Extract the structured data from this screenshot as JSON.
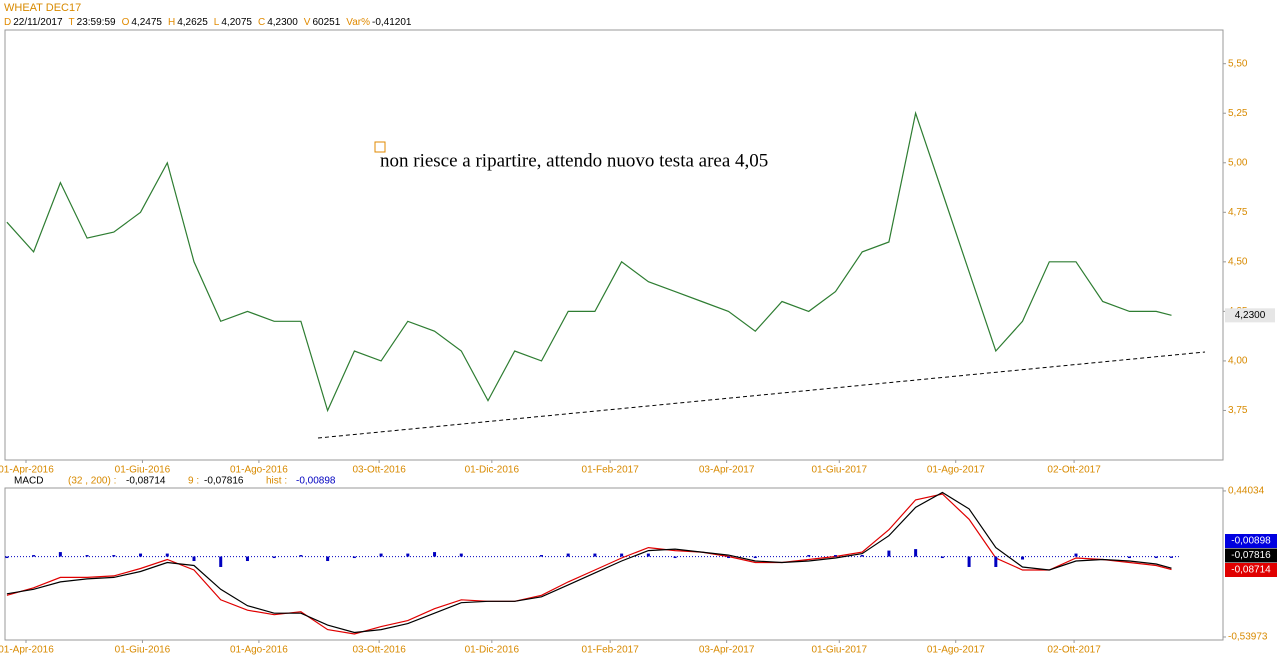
{
  "header": {
    "title": "WHEAT DEC17",
    "fields": [
      {
        "key": "D",
        "value": "22/11/2017"
      },
      {
        "key": "T",
        "value": "23:59:59"
      },
      {
        "key": "O",
        "value": "4,2475"
      },
      {
        "key": "H",
        "value": "4,2625"
      },
      {
        "key": "L",
        "value": "4,2075"
      },
      {
        "key": "C",
        "value": "4,2300"
      },
      {
        "key": "V",
        "value": "60251"
      },
      {
        "key": "Var%",
        "value": "-0,41201"
      }
    ]
  },
  "chart_data": [
    {
      "type": "line",
      "annotation": "non riesce a ripartire, attendo nuovo testa area 4,05",
      "last_label": "4,2300",
      "x": [
        "2016-03-22",
        "2016-04-05",
        "2016-04-19",
        "2016-05-03",
        "2016-05-17",
        "2016-05-31",
        "2016-06-14",
        "2016-06-28",
        "2016-07-12",
        "2016-07-26",
        "2016-08-09",
        "2016-08-23",
        "2016-09-06",
        "2016-09-20",
        "2016-10-04",
        "2016-10-18",
        "2016-11-01",
        "2016-11-15",
        "2016-11-29",
        "2016-12-13",
        "2016-12-27",
        "2017-01-10",
        "2017-01-24",
        "2017-02-07",
        "2017-02-21",
        "2017-03-07",
        "2017-03-21",
        "2017-04-04",
        "2017-04-18",
        "2017-05-02",
        "2017-05-16",
        "2017-05-30",
        "2017-06-13",
        "2017-06-27",
        "2017-07-11",
        "2017-07-25",
        "2017-08-08",
        "2017-08-22",
        "2017-09-05",
        "2017-09-19",
        "2017-10-03",
        "2017-10-17",
        "2017-10-31",
        "2017-11-14",
        "2017-11-22"
      ],
      "series": [
        {
          "color": "#2e7d32",
          "values": [
            4.7,
            4.55,
            4.9,
            4.62,
            4.65,
            4.75,
            5.0,
            4.5,
            4.2,
            4.25,
            4.2,
            4.2,
            3.75,
            4.05,
            4.0,
            4.2,
            4.15,
            4.05,
            3.8,
            4.05,
            4.0,
            4.25,
            4.25,
            4.5,
            4.4,
            4.35,
            4.3,
            4.25,
            4.15,
            4.3,
            4.25,
            4.35,
            4.55,
            4.6,
            5.25,
            4.85,
            4.45,
            4.05,
            4.2,
            4.5,
            4.5,
            4.3,
            4.25,
            4.25,
            4.23
          ]
        }
      ],
      "xlim": [
        "2016-03-21",
        "2017-12-19"
      ],
      "xticks": [
        {
          "value": "2016-04-01",
          "label": "01-Apr-2016"
        },
        {
          "value": "2016-06-01",
          "label": "01-Giu-2016"
        },
        {
          "value": "2016-08-01",
          "label": "01-Ago-2016"
        },
        {
          "value": "2016-10-03",
          "label": "03-Ott-2016"
        },
        {
          "value": "2016-12-01",
          "label": "01-Dic-2016"
        },
        {
          "value": "2017-02-01",
          "label": "01-Feb-2017"
        },
        {
          "value": "2017-04-03",
          "label": "03-Apr-2017"
        },
        {
          "value": "2017-06-01",
          "label": "01-Giu-2017"
        },
        {
          "value": "2017-08-01",
          "label": "01-Ago-2017"
        },
        {
          "value": "2017-10-02",
          "label": "02-Ott-2017"
        }
      ],
      "ylim": [
        3.5,
        5.67
      ],
      "yticks": [
        {
          "value": 3.75,
          "label": "3,75"
        },
        {
          "value": 4.0,
          "label": "4,00"
        },
        {
          "value": 4.25,
          "label": "4,25"
        },
        {
          "value": 4.5,
          "label": "4,50"
        },
        {
          "value": 4.75,
          "label": "4,75"
        },
        {
          "value": 5.0,
          "label": "5,00"
        },
        {
          "value": 5.25,
          "label": "5,25"
        },
        {
          "value": 5.5,
          "label": "5,50"
        }
      ]
    },
    {
      "type": "macd",
      "title": "MACD",
      "x": [
        "2016-03-22",
        "2016-04-05",
        "2016-04-19",
        "2016-05-03",
        "2016-05-17",
        "2016-05-31",
        "2016-06-14",
        "2016-06-28",
        "2016-07-12",
        "2016-07-26",
        "2016-08-09",
        "2016-08-23",
        "2016-09-06",
        "2016-09-20",
        "2016-10-04",
        "2016-10-18",
        "2016-11-01",
        "2016-11-15",
        "2016-11-29",
        "2016-12-13",
        "2016-12-27",
        "2017-01-10",
        "2017-01-24",
        "2017-02-07",
        "2017-02-21",
        "2017-03-07",
        "2017-03-21",
        "2017-04-04",
        "2017-04-18",
        "2017-05-02",
        "2017-05-16",
        "2017-05-30",
        "2017-06-13",
        "2017-06-27",
        "2017-07-11",
        "2017-07-25",
        "2017-08-08",
        "2017-08-22",
        "2017-09-05",
        "2017-09-19",
        "2017-10-03",
        "2017-10-17",
        "2017-10-31",
        "2017-11-14",
        "2017-11-22"
      ],
      "series": [
        {
          "name": "(32 , 200) :",
          "color": "#e00000",
          "last_label": "-0,08714",
          "values": [
            -0.26,
            -0.21,
            -0.14,
            -0.14,
            -0.13,
            -0.08,
            -0.02,
            -0.09,
            -0.29,
            -0.36,
            -0.39,
            -0.37,
            -0.49,
            -0.52,
            -0.47,
            -0.43,
            -0.35,
            -0.29,
            -0.3,
            -0.3,
            -0.26,
            -0.17,
            -0.09,
            -0.01,
            0.06,
            0.04,
            0.03,
            0.0,
            -0.04,
            -0.04,
            -0.02,
            0.0,
            0.03,
            0.18,
            0.38,
            0.42,
            0.25,
            -0.01,
            -0.09,
            -0.09,
            -0.01,
            -0.02,
            -0.04,
            -0.06,
            -0.08714
          ]
        },
        {
          "name": "9 :",
          "color": "#000000",
          "last_label": "-0,07816",
          "values": [
            -0.25,
            -0.22,
            -0.17,
            -0.15,
            -0.14,
            -0.1,
            -0.04,
            -0.06,
            -0.22,
            -0.33,
            -0.38,
            -0.38,
            -0.46,
            -0.51,
            -0.49,
            -0.45,
            -0.38,
            -0.31,
            -0.3,
            -0.3,
            -0.27,
            -0.19,
            -0.11,
            -0.03,
            0.04,
            0.05,
            0.03,
            0.01,
            -0.03,
            -0.04,
            -0.03,
            -0.01,
            0.02,
            0.14,
            0.33,
            0.43,
            0.32,
            0.06,
            -0.07,
            -0.09,
            -0.03,
            -0.02,
            -0.03,
            -0.05,
            -0.07816
          ]
        },
        {
          "name": "hist :",
          "color": "#0000c0",
          "last_label": "-0,00898",
          "kind": "bar",
          "values": [
            -0.01,
            0.01,
            0.03,
            0.01,
            0.01,
            0.02,
            0.02,
            -0.03,
            -0.07,
            -0.03,
            -0.01,
            0.01,
            -0.03,
            -0.01,
            0.02,
            0.02,
            0.03,
            0.02,
            0,
            0,
            0.01,
            0.02,
            0.02,
            0.02,
            0.02,
            -0.01,
            0,
            -0.01,
            -0.01,
            0,
            0.01,
            0.01,
            0.01,
            0.04,
            0.05,
            -0.01,
            -0.07,
            -0.07,
            -0.02,
            0,
            0.02,
            0,
            -0.01,
            -0.01,
            -0.00898
          ]
        }
      ],
      "xlim": [
        "2016-03-21",
        "2017-12-19"
      ],
      "xticks": [
        {
          "value": "2016-04-01",
          "label": "01-Apr-2016"
        },
        {
          "value": "2016-06-01",
          "label": "01-Giu-2016"
        },
        {
          "value": "2016-08-01",
          "label": "01-Ago-2016"
        },
        {
          "value": "2016-10-03",
          "label": "03-Ott-2016"
        },
        {
          "value": "2016-12-01",
          "label": "01-Dic-2016"
        },
        {
          "value": "2017-02-01",
          "label": "01-Feb-2017"
        },
        {
          "value": "2017-04-03",
          "label": "03-Apr-2017"
        },
        {
          "value": "2017-06-01",
          "label": "01-Giu-2017"
        },
        {
          "value": "2017-08-01",
          "label": "01-Ago-2017"
        },
        {
          "value": "2017-10-02",
          "label": "02-Ott-2017"
        }
      ],
      "ylim": [
        -0.56,
        0.46
      ],
      "yticks": [
        {
          "value": -0.53973,
          "label": "-0,53973"
        },
        {
          "value": 0.44034,
          "label": "0,44034"
        }
      ]
    }
  ]
}
